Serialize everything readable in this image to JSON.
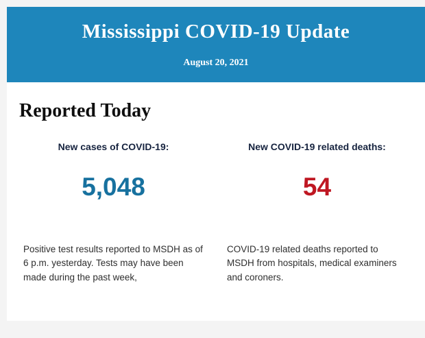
{
  "colors": {
    "header_background": "#1e86bb",
    "cases_value_color": "#17719f",
    "deaths_value_color": "#bf1722",
    "page_background": "#f4f4f4"
  },
  "header": {
    "title": "Mississippi COVID-19 Update",
    "date": "August 20, 2021"
  },
  "main": {
    "section_title": "Reported Today",
    "stats": [
      {
        "label": "New cases of COVID-19:",
        "value": "5,048",
        "value_color": "#17719f",
        "description": "Positive test results reported to MSDH as of 6 p.m. yesterday. Tests may have been made during the past week,"
      },
      {
        "label": "New COVID-19 related deaths:",
        "value": "54",
        "value_color": "#bf1722",
        "description": "COVID-19 related deaths reported to MSDH from hospitals, medical examiners and coroners."
      }
    ]
  }
}
